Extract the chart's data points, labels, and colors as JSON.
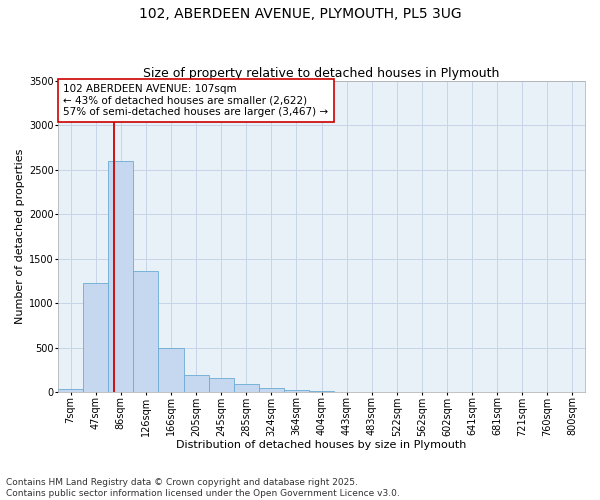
{
  "title": "102, ABERDEEN AVENUE, PLYMOUTH, PL5 3UG",
  "subtitle": "Size of property relative to detached houses in Plymouth",
  "xlabel": "Distribution of detached houses by size in Plymouth",
  "ylabel": "Number of detached properties",
  "categories": [
    "7sqm",
    "47sqm",
    "86sqm",
    "126sqm",
    "166sqm",
    "205sqm",
    "245sqm",
    "285sqm",
    "324sqm",
    "364sqm",
    "404sqm",
    "443sqm",
    "483sqm",
    "522sqm",
    "562sqm",
    "602sqm",
    "641sqm",
    "681sqm",
    "721sqm",
    "760sqm",
    "800sqm"
  ],
  "values": [
    30,
    1230,
    2600,
    1360,
    500,
    190,
    155,
    95,
    50,
    28,
    10,
    5,
    3,
    2,
    1,
    0,
    0,
    0,
    0,
    0,
    0
  ],
  "bar_color": "#c5d8f0",
  "bar_edge_color": "#6aaad4",
  "vline_color": "#cc0000",
  "vline_x": 1.72,
  "annotation_text": "102 ABERDEEN AVENUE: 107sqm\n← 43% of detached houses are smaller (2,622)\n57% of semi-detached houses are larger (3,467) →",
  "annotation_box_color": "white",
  "annotation_box_edge_color": "#cc0000",
  "ylim": [
    0,
    3500
  ],
  "yticks": [
    0,
    500,
    1000,
    1500,
    2000,
    2500,
    3000,
    3500
  ],
  "grid_color": "#c8d4e8",
  "bg_color": "#e8f0f8",
  "footer": "Contains HM Land Registry data © Crown copyright and database right 2025.\nContains public sector information licensed under the Open Government Licence v3.0.",
  "title_fontsize": 10,
  "subtitle_fontsize": 9,
  "axis_label_fontsize": 8,
  "tick_fontsize": 7,
  "annotation_fontsize": 7.5,
  "footer_fontsize": 6.5
}
